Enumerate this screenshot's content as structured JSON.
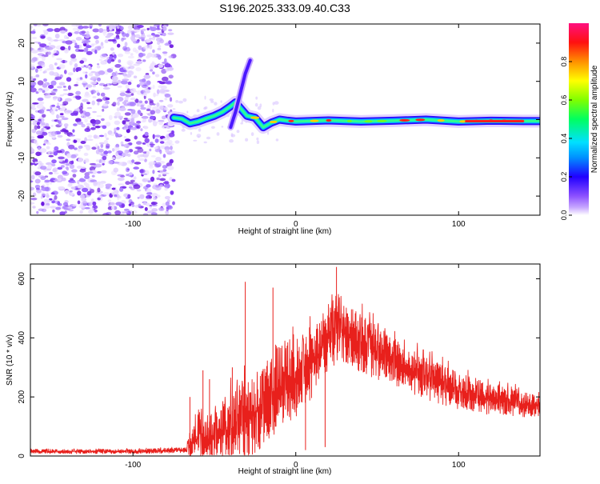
{
  "title": "S196.2025.333.09.40.C33",
  "chart_data": [
    {
      "type": "heatmap",
      "xlabel": "Height of straight line (km)",
      "ylabel": "Frequency (Hz)",
      "xlim": [
        -163,
        150
      ],
      "ylim": [
        -25,
        25
      ],
      "x_ticks": [
        "-100",
        "0",
        "100"
      ],
      "x_tick_values": [
        -100,
        0,
        100
      ],
      "y_ticks": [
        "20",
        "10",
        "0",
        "-10",
        "-20"
      ],
      "y_tick_values": [
        20,
        10,
        0,
        -10,
        -20
      ],
      "noise_region_x": [
        -163,
        -75
      ],
      "signal_track": {
        "x": [
          -75,
          -70,
          -65,
          -60,
          -55,
          -50,
          -45,
          -40,
          -37,
          -34,
          -30,
          -25,
          -20,
          -15,
          -10,
          -5,
          0,
          20,
          40,
          60,
          80,
          100,
          120,
          140,
          150
        ],
        "freq_hz": [
          0.5,
          0.2,
          -1.0,
          -0.5,
          0.3,
          1.0,
          2.0,
          3.5,
          4.5,
          3.0,
          1.0,
          0.5,
          -2.0,
          -0.8,
          0.0,
          -0.3,
          -0.5,
          -0.2,
          -0.5,
          -0.3,
          0.0,
          -0.5,
          -0.3,
          -0.4,
          -0.4
        ]
      },
      "spike_track": {
        "x": [
          -40,
          -37,
          -34,
          -31,
          -28
        ],
        "freq_hz": [
          -2.0,
          2.0,
          7.0,
          12.0,
          15.5
        ]
      },
      "colorbar": {
        "label": "Normalized spectral amplitude",
        "range": [
          0,
          1
        ],
        "ticks": [
          "0.0",
          "0.2",
          "0.4",
          "0.6",
          "0.8"
        ],
        "tick_values": [
          0.0,
          0.2,
          0.4,
          0.6,
          0.8
        ]
      }
    },
    {
      "type": "line",
      "xlabel": "Height of straight line (km)",
      "ylabel": "SNR (10 * v/v)",
      "xlim": [
        -163,
        150
      ],
      "ylim": [
        0,
        650
      ],
      "x_ticks": [
        "-100",
        "0",
        "100"
      ],
      "x_tick_values": [
        -100,
        0,
        100
      ],
      "y_ticks": [
        "0",
        "200",
        "400",
        "600"
      ],
      "y_tick_values": [
        0,
        200,
        400,
        600
      ],
      "series": [
        {
          "name": "SNR",
          "color": "#e8201c",
          "envelope": {
            "x": [
              -163,
              -130,
              -100,
              -80,
              -67,
              -65,
              -60,
              -55,
              -50,
              -45,
              -40,
              -30,
              -20,
              -10,
              0,
              10,
              20,
              25,
              30,
              40,
              50,
              60,
              80,
              100,
              120,
              140,
              150
            ],
            "base": [
              15,
              15,
              15,
              18,
              20,
              40,
              60,
              50,
              60,
              70,
              90,
              120,
              170,
              230,
              260,
              310,
              400,
              430,
              420,
              380,
              350,
              320,
              260,
              220,
              190,
              175,
              170
            ],
            "spread": [
              8,
              8,
              8,
              10,
              10,
              60,
              90,
              90,
              100,
              110,
              140,
              160,
              160,
              160,
              150,
              140,
              120,
              130,
              120,
              110,
              100,
              90,
              80,
              70,
              60,
              50,
              45
            ]
          },
          "spikes": [
            {
              "x": -65,
              "y": 200
            },
            {
              "x": -57,
              "y": 290
            },
            {
              "x": -53,
              "y": 260
            },
            {
              "x": -39,
              "y": 300
            },
            {
              "x": -31,
              "y": 590
            },
            {
              "x": -14,
              "y": 570
            },
            {
              "x": 25,
              "y": 640
            },
            {
              "x": 6,
              "y": 20
            },
            {
              "x": 18,
              "y": 30
            }
          ]
        }
      ]
    }
  ]
}
